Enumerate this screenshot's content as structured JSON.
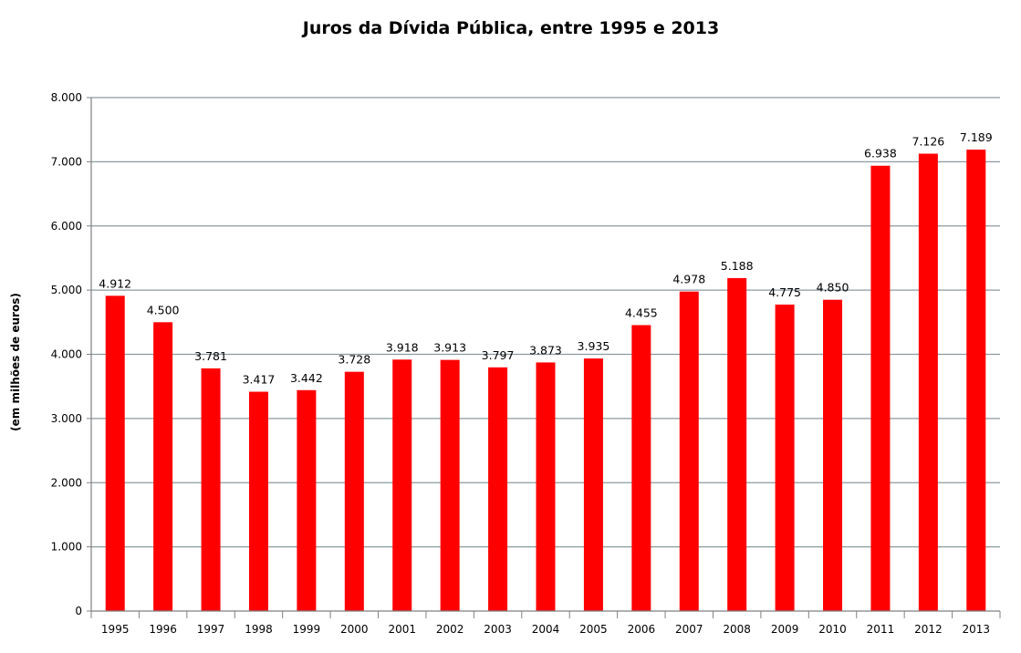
{
  "chart_data": {
    "type": "bar",
    "title": "Juros da Dívida Pública, entre 1995 e 2013",
    "xlabel": "",
    "ylabel": "(em milhões de euros)",
    "categories": [
      "1995",
      "1996",
      "1997",
      "1998",
      "1999",
      "2000",
      "2001",
      "2002",
      "2003",
      "2004",
      "2005",
      "2006",
      "2007",
      "2008",
      "2009",
      "2010",
      "2011",
      "2012",
      "2013"
    ],
    "values": [
      4912,
      4500,
      3781,
      3417,
      3442,
      3728,
      3918,
      3913,
      3797,
      3873,
      3935,
      4455,
      4978,
      5188,
      4775,
      4850,
      6938,
      7126,
      7189
    ],
    "value_labels": [
      "4.912",
      "4.500",
      "3.781",
      "3.417",
      "3.442",
      "3.728",
      "3.918",
      "3.913",
      "3.797",
      "3.873",
      "3.935",
      "4.455",
      "4.978",
      "5.188",
      "4.775",
      "4.850",
      "6.938",
      "7.126",
      "7.189"
    ],
    "ylim": [
      0,
      8000
    ],
    "y_ticks": [
      0,
      1000,
      2000,
      3000,
      4000,
      5000,
      6000,
      7000,
      8000
    ],
    "y_tick_labels": [
      "0",
      "1.000",
      "2.000",
      "3.000",
      "4.000",
      "5.000",
      "6.000",
      "7.000",
      "8.000"
    ],
    "grid": true,
    "legend": "none",
    "colors": {
      "bar": "#ff0000",
      "grid": "#8c9aa0",
      "axis": "#808080",
      "text": "#000000"
    }
  }
}
